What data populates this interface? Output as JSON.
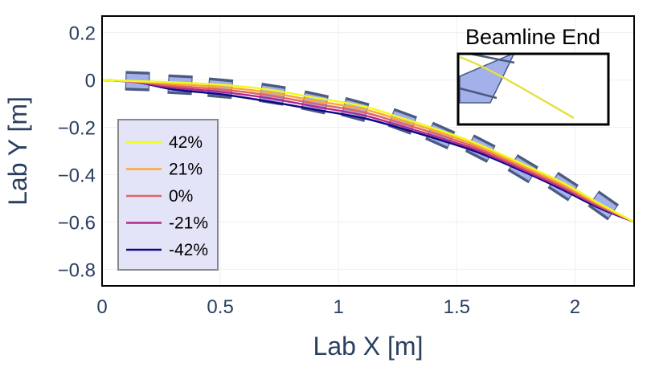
{
  "chart_data": {
    "type": "line",
    "title": "",
    "xlabel": "Lab X [m]",
    "ylabel": "Lab Y [m]",
    "xlim": [
      0,
      2.25
    ],
    "ylim": [
      -0.87,
      0.27
    ],
    "xticks": [
      0,
      0.5,
      1,
      1.5,
      2
    ],
    "xtick_labels": [
      "0",
      "0.5",
      "1",
      "1.5",
      "2"
    ],
    "yticks": [
      0.2,
      0,
      -0.2,
      -0.4,
      -0.6,
      -0.8
    ],
    "ytick_labels": [
      "0.2",
      "0",
      "−0.2",
      "−0.4",
      "−0.6",
      "−0.8"
    ],
    "grid": true,
    "legend_position": "left",
    "x": [
      0,
      0.15,
      0.3,
      0.5,
      0.7,
      0.9,
      1.1,
      1.25,
      1.45,
      1.6,
      1.8,
      1.95,
      2.1,
      2.25
    ],
    "series": [
      {
        "name": "42%",
        "color": "#f0f921",
        "values": [
          0,
          -0.005,
          -0.01,
          -0.02,
          -0.04,
          -0.075,
          -0.11,
          -0.155,
          -0.22,
          -0.275,
          -0.365,
          -0.435,
          -0.52,
          -0.6
        ]
      },
      {
        "name": "21%",
        "color": "#fca636",
        "values": [
          0,
          -0.007,
          -0.017,
          -0.03,
          -0.052,
          -0.088,
          -0.122,
          -0.166,
          -0.229,
          -0.284,
          -0.373,
          -0.443,
          -0.525,
          -0.6
        ]
      },
      {
        "name": "0%",
        "color": "#e16462",
        "values": [
          0,
          -0.008,
          -0.025,
          -0.04,
          -0.064,
          -0.1,
          -0.135,
          -0.178,
          -0.24,
          -0.293,
          -0.381,
          -0.451,
          -0.53,
          -0.6
        ]
      },
      {
        "name": "-21%",
        "color": "#b12a90",
        "values": [
          0,
          -0.01,
          -0.032,
          -0.05,
          -0.076,
          -0.112,
          -0.148,
          -0.19,
          -0.251,
          -0.302,
          -0.389,
          -0.458,
          -0.535,
          -0.6
        ]
      },
      {
        "name": "-42%",
        "color": "#0d0887",
        "values": [
          0,
          -0.01,
          -0.04,
          -0.06,
          -0.09,
          -0.125,
          -0.16,
          -0.2,
          -0.26,
          -0.31,
          -0.395,
          -0.465,
          -0.54,
          -0.6
        ]
      }
    ],
    "elements": [
      {
        "x": 0.15,
        "y": -0.005,
        "angle": -2
      },
      {
        "x": 0.33,
        "y": -0.02,
        "angle": -3
      },
      {
        "x": 0.5,
        "y": -0.035,
        "angle": -5
      },
      {
        "x": 0.72,
        "y": -0.06,
        "angle": -9
      },
      {
        "x": 0.9,
        "y": -0.095,
        "angle": -12
      },
      {
        "x": 1.07,
        "y": -0.125,
        "angle": -15
      },
      {
        "x": 1.27,
        "y": -0.175,
        "angle": -20
      },
      {
        "x": 1.43,
        "y": -0.235,
        "angle": -24
      },
      {
        "x": 1.6,
        "y": -0.29,
        "angle": -27
      },
      {
        "x": 1.78,
        "y": -0.375,
        "angle": -31
      },
      {
        "x": 1.95,
        "y": -0.45,
        "angle": -33
      },
      {
        "x": 2.12,
        "y": -0.53,
        "angle": -35
      }
    ],
    "inset": {
      "title": "Beamline End"
    }
  }
}
